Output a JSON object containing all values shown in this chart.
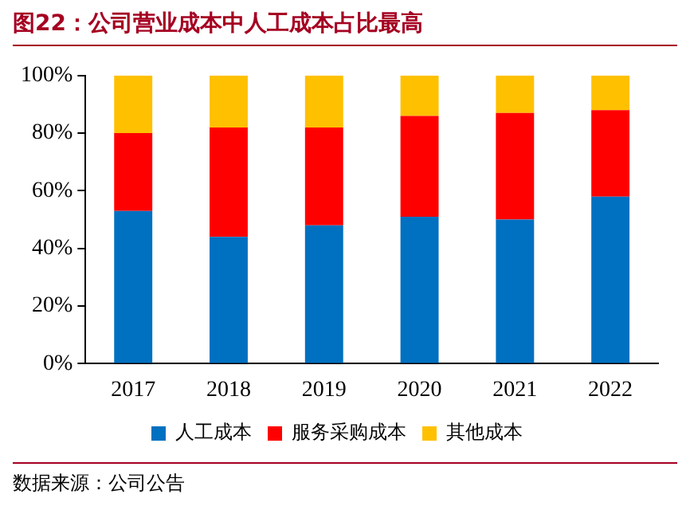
{
  "chart_data": {
    "type": "bar",
    "stacked": true,
    "title": "图22：公司营业成本中人工成本占比最高",
    "categories": [
      "2017",
      "2018",
      "2019",
      "2020",
      "2021",
      "2022"
    ],
    "series": [
      {
        "name": "人工成本",
        "color": "#0070c0",
        "values": [
          53,
          44,
          48,
          51,
          50,
          58
        ]
      },
      {
        "name": "服务采购成本",
        "color": "#ff0000",
        "values": [
          27,
          38,
          34,
          35,
          37,
          30
        ]
      },
      {
        "name": "其他成本",
        "color": "#ffc000",
        "values": [
          20,
          18,
          18,
          14,
          13,
          12
        ]
      }
    ],
    "ylim": [
      0,
      100
    ],
    "yticks": [
      {
        "value": 0,
        "label": "0%"
      },
      {
        "value": 20,
        "label": "20%"
      },
      {
        "value": 40,
        "label": "40%"
      },
      {
        "value": 60,
        "label": "60%"
      },
      {
        "value": 80,
        "label": "80%"
      },
      {
        "value": 100,
        "label": "100%"
      }
    ],
    "grid": false,
    "legend": "bottom",
    "annotations": [
      "数据来源：公司公告"
    ]
  }
}
